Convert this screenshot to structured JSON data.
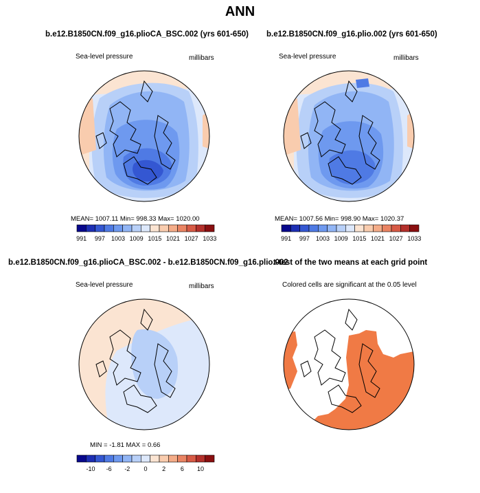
{
  "title": "ANN",
  "colors": {
    "c_m7": "#08088c",
    "c_m6": "#1d2fb4",
    "c_m5": "#3457d2",
    "c_m4": "#4f7ae4",
    "c_m3": "#6e99ef",
    "c_m2": "#91b5f5",
    "c_m1": "#b8d0f8",
    "c_0": "#dde8fb",
    "c_p1": "#fbe4d2",
    "c_p2": "#f9ccae",
    "c_p3": "#f4ac88",
    "c_p4": "#ea8463",
    "c_p5": "#d75a45",
    "c_p6": "#b4302b",
    "c_p7": "#8a0f10",
    "significant": "#f07a45",
    "coast": "#000000",
    "ocean_white": "#ffffff"
  },
  "chart_data": [
    {
      "type": "heatmap",
      "id": "panel1",
      "title": "b.e12.B1850CN.f09_g16.plioCA_BSC.002 (yrs 601-650)",
      "left_label": "Sea-level pressure",
      "right_label": "millibars",
      "stats": "MEAN= 1007.11   Min= 998.33   Max= 1020.00",
      "mean": 1007.11,
      "min": 998.33,
      "max": 1020.0,
      "colorbar_levels": [
        991,
        994,
        997,
        1000,
        1003,
        1006,
        1009,
        1012,
        1015,
        1018,
        1021,
        1024,
        1027,
        1030,
        1033
      ],
      "colorbar_ticks": [
        "991",
        "997",
        "1003",
        "1009",
        "1015",
        "1021",
        "1027",
        "1033"
      ]
    },
    {
      "type": "heatmap",
      "id": "panel2",
      "title": "b.e12.B1850CN.f09_g16.plio.002 (yrs 601-650)",
      "left_label": "Sea-level pressure",
      "right_label": "millibars",
      "stats": "MEAN= 1007.56   Min= 998.90   Max= 1020.37",
      "mean": 1007.56,
      "min": 998.9,
      "max": 1020.37,
      "colorbar_levels": [
        991,
        994,
        997,
        1000,
        1003,
        1006,
        1009,
        1012,
        1015,
        1018,
        1021,
        1024,
        1027,
        1030,
        1033
      ],
      "colorbar_ticks": [
        "991",
        "997",
        "1003",
        "1009",
        "1015",
        "1021",
        "1027",
        "1033"
      ]
    },
    {
      "type": "heatmap",
      "id": "panel3",
      "title": "b.e12.B1850CN.f09_g16.plioCA_BSC.002 - b.e12.B1850CN.f09_g16.plio.002",
      "left_label": "Sea-level pressure",
      "right_label": "millibars",
      "stats": "MIN =   -1.81  MAX =    0.66",
      "min": -1.81,
      "max": 0.66,
      "colorbar_levels": [
        -12,
        -10,
        -8,
        -6,
        -4,
        -2,
        -1,
        0,
        1,
        2,
        4,
        6,
        8,
        10,
        12
      ],
      "colorbar_ticks": [
        "-10",
        "-6",
        "-2",
        "0",
        "2",
        "6",
        "10"
      ]
    },
    {
      "type": "heatmap",
      "id": "panel4",
      "title": "t-test of the two means at each grid point",
      "caption": "Colored cells are significant at the 0.05 level"
    }
  ]
}
